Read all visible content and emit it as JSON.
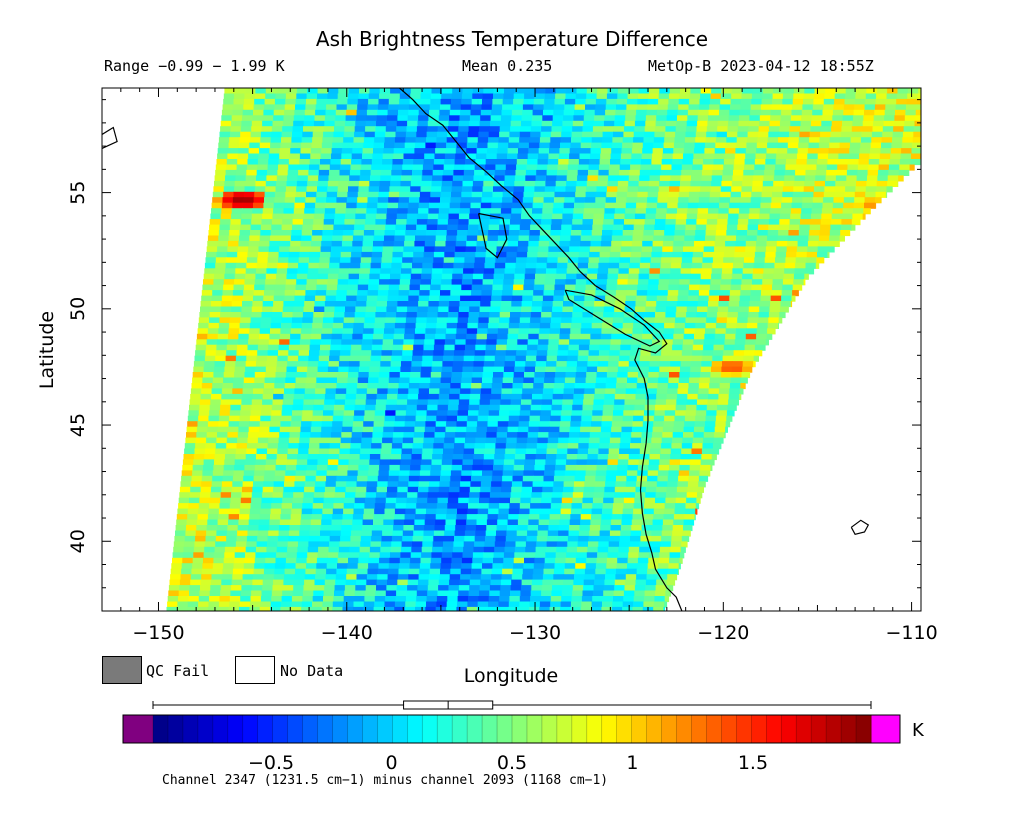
{
  "title": "Ash Brightness Temperature Difference",
  "header": {
    "range": "Range −0.99 − 1.99 K",
    "mean": "Mean 0.235",
    "satellite_time": "MetOp-B 2023-04-12 18:55Z"
  },
  "legend": {
    "qc_fail": "QC Fail",
    "no_data": "No Data",
    "colors": {
      "qc_fail": "#7a7a7a",
      "no_data": "#ffffff"
    }
  },
  "colorbar": {
    "unit": "K",
    "ticks": [
      {
        "value": -0.5,
        "label": "−0.5"
      },
      {
        "value": 0,
        "label": "0"
      },
      {
        "value": 0.5,
        "label": "0.5"
      },
      {
        "value": 1,
        "label": "1"
      },
      {
        "value": 1.5,
        "label": "1.5"
      }
    ],
    "min": -0.99,
    "max": 1.99,
    "under_color": "#800080",
    "over_color": "#ff00ff",
    "colormap": "jet",
    "boxplot": {
      "min": -0.99,
      "q1": 0.05,
      "median": 0.235,
      "q3": 0.42,
      "max": 1.99
    }
  },
  "channel_note": "Channel 2347 (1231.5 cm−1) minus channel 2093 (1168 cm−1)",
  "chart_data": {
    "type": "heatmap",
    "title": "Ash Brightness Temperature Difference",
    "xlabel": "Longitude",
    "ylabel": "Latitude",
    "xlim": [
      -153,
      -109.5
    ],
    "ylim": [
      37,
      59.5
    ],
    "x_ticks": [
      {
        "value": -150,
        "label": "−150"
      },
      {
        "value": -140,
        "label": "−140"
      },
      {
        "value": -130,
        "label": "−130"
      },
      {
        "value": -120,
        "label": "−120"
      },
      {
        "value": -110,
        "label": "−110"
      }
    ],
    "y_ticks": [
      {
        "value": 40,
        "label": "40"
      },
      {
        "value": 45,
        "label": "45"
      },
      {
        "value": 50,
        "label": "50"
      },
      {
        "value": 55,
        "label": "55"
      }
    ],
    "value_range": [
      -0.99,
      1.99
    ],
    "mean": 0.235,
    "units": "K",
    "swath_boundary": {
      "west_edge": [
        [
          -146.5,
          59.5
        ],
        [
          -149.6,
          37
        ]
      ],
      "east_edge": [
        [
          -109.5,
          56.5
        ],
        [
          -112,
          54.5
        ],
        [
          -115.5,
          51.5
        ],
        [
          -118.5,
          47.5
        ],
        [
          -121,
          42.5
        ],
        [
          -122.3,
          39
        ],
        [
          -123.2,
          37
        ]
      ]
    },
    "field_profile": [
      {
        "lon": -149,
        "value": 0.75
      },
      {
        "lon": -146,
        "value": 0.6
      },
      {
        "lon": -142,
        "value": 0.3
      },
      {
        "lon": -138,
        "value": 0.0
      },
      {
        "lon": -134,
        "value": -0.15
      },
      {
        "lon": -130,
        "value": 0.05
      },
      {
        "lon": -126,
        "value": 0.3
      },
      {
        "lon": -122,
        "value": 0.5
      },
      {
        "lon": -116,
        "value": 0.65
      },
      {
        "lon": -110,
        "value": 0.75
      }
    ],
    "hotspots": [
      {
        "lon": -145.8,
        "lat": 54.8,
        "value": 1.9
      },
      {
        "lon": -119.8,
        "lat": 47.6,
        "value": 1.4
      },
      {
        "lon": -115.5,
        "lat": 50.0,
        "value": 1.3
      },
      {
        "lon": -112.3,
        "lat": 54.6,
        "value": 1.2
      }
    ]
  }
}
